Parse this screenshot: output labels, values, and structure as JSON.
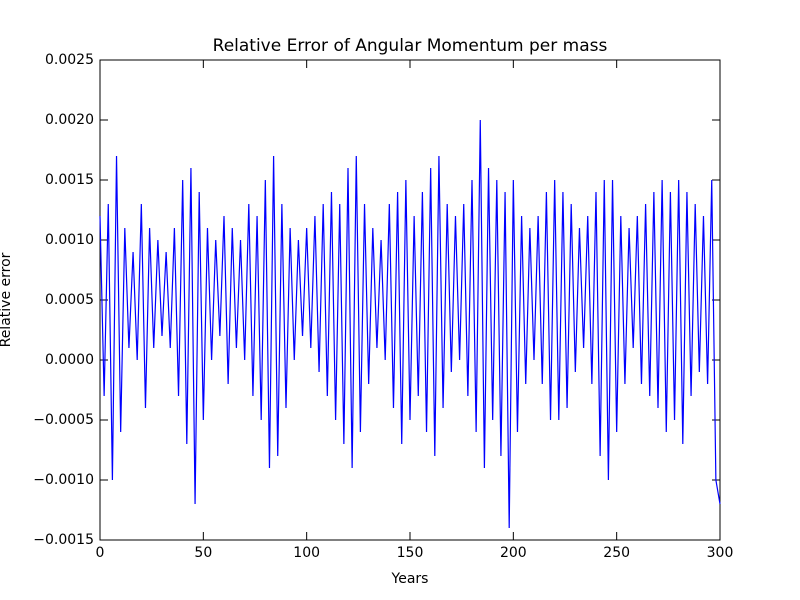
{
  "chart_data": {
    "type": "line",
    "title": "Relative Error of Angular Momentum per mass",
    "x_label": "Years",
    "y_label": "Relative error",
    "color": "#0000ff",
    "xlim": [
      0,
      300
    ],
    "xticks": [
      0,
      50,
      100,
      150,
      200,
      250,
      300
    ],
    "ylim": [
      -0.0015,
      0.0025
    ],
    "yticks": [
      {
        "value": -0.0015,
        "label": "−0.0015"
      },
      {
        "value": -0.001,
        "label": "−0.0010"
      },
      {
        "value": -0.0005,
        "label": "−0.0005"
      },
      {
        "value": 0,
        "label": "0.0000"
      },
      {
        "value": 0.0005,
        "label": "0.0005"
      },
      {
        "value": 0.001,
        "label": "0.0010"
      },
      {
        "value": 0.0015,
        "label": "0.0015"
      },
      {
        "value": 0.002,
        "label": "0.0020"
      },
      {
        "value": 0.0025,
        "label": "0.0025"
      }
    ],
    "x": [
      0,
      2,
      4,
      6,
      8,
      10,
      12,
      14,
      16,
      18,
      20,
      22,
      24,
      26,
      28,
      30,
      32,
      34,
      36,
      38,
      40,
      42,
      44,
      46,
      48,
      50,
      52,
      54,
      56,
      58,
      60,
      62,
      64,
      66,
      68,
      70,
      72,
      74,
      76,
      78,
      80,
      82,
      84,
      86,
      88,
      90,
      92,
      94,
      96,
      98,
      100,
      102,
      104,
      106,
      108,
      110,
      112,
      114,
      116,
      118,
      120,
      122,
      124,
      126,
      128,
      130,
      132,
      134,
      136,
      138,
      140,
      142,
      144,
      146,
      148,
      150,
      152,
      154,
      156,
      158,
      160,
      162,
      164,
      166,
      168,
      170,
      172,
      174,
      176,
      178,
      180,
      182,
      184,
      186,
      188,
      190,
      192,
      194,
      196,
      198,
      200,
      202,
      204,
      206,
      208,
      210,
      212,
      214,
      216,
      218,
      220,
      222,
      224,
      226,
      228,
      230,
      232,
      234,
      236,
      238,
      240,
      242,
      244,
      246,
      248,
      250,
      252,
      254,
      256,
      258,
      260,
      262,
      264,
      266,
      268,
      270,
      272,
      274,
      276,
      278,
      280,
      282,
      284,
      286,
      288,
      290,
      292,
      294,
      296,
      298,
      300
    ],
    "values": [
      0.0012,
      -0.0003,
      0.0013,
      -0.001,
      0.0017,
      -0.0006,
      0.0011,
      0.0001,
      0.0009,
      0.0,
      0.0013,
      -0.0004,
      0.0011,
      0.0001,
      0.001,
      0.0002,
      0.0009,
      0.0001,
      0.0011,
      -0.0003,
      0.0015,
      -0.0007,
      0.0016,
      -0.0012,
      0.0014,
      -0.0005,
      0.0011,
      0.0,
      0.001,
      0.0002,
      0.0012,
      -0.0002,
      0.0011,
      0.0001,
      0.001,
      0.0,
      0.0013,
      -0.0003,
      0.0012,
      -0.0005,
      0.0015,
      -0.0009,
      0.0017,
      -0.0008,
      0.0013,
      -0.0004,
      0.0011,
      0.0,
      0.001,
      0.0002,
      0.0011,
      0.0001,
      0.0012,
      -0.0001,
      0.0013,
      -0.0003,
      0.0014,
      -0.0005,
      0.0013,
      -0.0007,
      0.0016,
      -0.0009,
      0.0017,
      -0.0006,
      0.0013,
      -0.0002,
      0.0011,
      0.0001,
      0.001,
      0.0,
      0.0013,
      -0.0004,
      0.0014,
      -0.0007,
      0.0015,
      -0.0005,
      0.0012,
      -0.0003,
      0.0014,
      -0.0006,
      0.0016,
      -0.0008,
      0.0017,
      -0.0004,
      0.0013,
      -0.0001,
      0.0012,
      0.0,
      0.0013,
      -0.0003,
      0.0015,
      -0.0006,
      0.002,
      -0.0009,
      0.0016,
      -0.0005,
      0.0015,
      -0.0008,
      0.0014,
      -0.0014,
      0.0015,
      -0.0006,
      0.0012,
      -0.0002,
      0.0011,
      0.0,
      0.0012,
      -0.0002,
      0.0014,
      -0.0005,
      0.0015,
      -0.0005,
      0.0014,
      -0.0004,
      0.0013,
      -0.0001,
      0.0011,
      0.0001,
      0.0012,
      -0.0002,
      0.0014,
      -0.0008,
      0.0015,
      -0.001,
      0.0015,
      -0.0006,
      0.0012,
      -0.0002,
      0.0011,
      0.0001,
      0.0012,
      -0.0002,
      0.0013,
      -0.0003,
      0.0014,
      -0.0004,
      0.0015,
      -0.0006,
      0.0014,
      -0.0005,
      0.0015,
      -0.0007,
      0.0014,
      -0.0003,
      0.0013,
      -0.0001,
      0.0012,
      -0.0002,
      0.0015,
      -0.001,
      -0.0012
    ]
  }
}
